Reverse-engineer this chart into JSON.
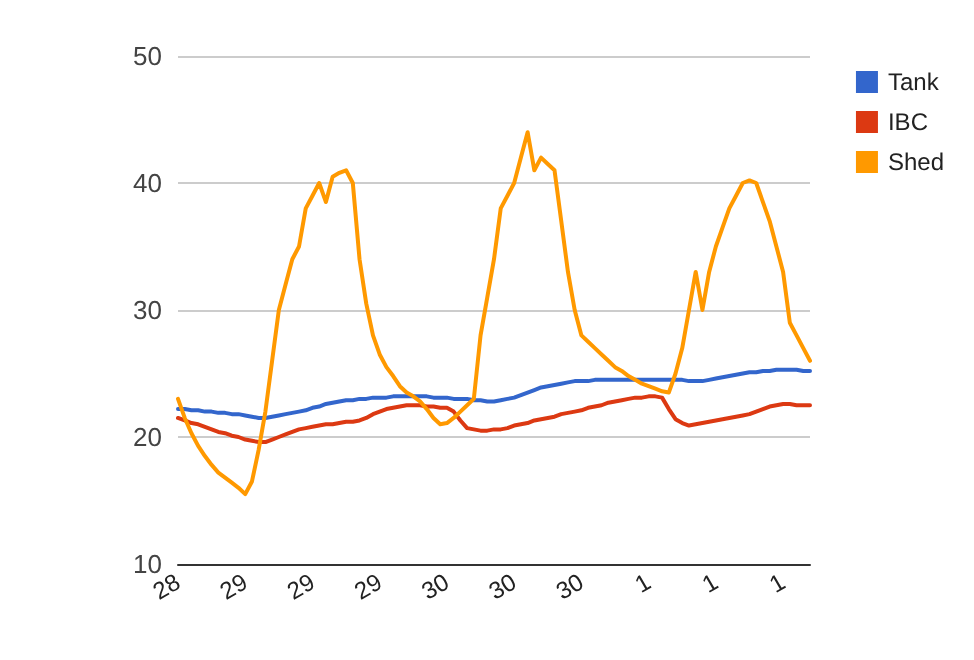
{
  "chart_data": {
    "type": "line",
    "categories": [
      "28",
      null,
      null,
      null,
      null,
      null,
      null,
      null,
      null,
      null,
      "29",
      null,
      null,
      null,
      null,
      null,
      null,
      null,
      null,
      null,
      "29",
      null,
      null,
      null,
      null,
      null,
      null,
      null,
      null,
      null,
      "29",
      null,
      null,
      null,
      null,
      null,
      null,
      null,
      null,
      null,
      "30",
      null,
      null,
      null,
      null,
      null,
      null,
      null,
      null,
      null,
      "30",
      null,
      null,
      null,
      null,
      null,
      null,
      null,
      null,
      null,
      "30",
      null,
      null,
      null,
      null,
      null,
      null,
      null,
      null,
      null,
      "1",
      null,
      null,
      null,
      null,
      null,
      null,
      null,
      null,
      null,
      "1",
      null,
      null,
      null,
      null,
      null,
      null,
      null,
      null,
      null,
      "1",
      null,
      null,
      null,
      null
    ],
    "ylim": [
      10,
      50
    ],
    "yticks": [
      10,
      20,
      30,
      40,
      50
    ],
    "grid": "y",
    "legend": "top right",
    "marker": "none",
    "line_style": "solid",
    "series": [
      {
        "name": "Tank",
        "color": "#3366cc",
        "values": [
          22.2,
          22.2,
          22.1,
          22.1,
          22,
          22,
          21.9,
          21.9,
          21.8,
          21.8,
          21.7,
          21.6,
          21.5,
          21.5,
          21.6,
          21.7,
          21.8,
          21.9,
          22,
          22.1,
          22.3,
          22.4,
          22.6,
          22.7,
          22.8,
          22.9,
          22.9,
          23,
          23,
          23.1,
          23.1,
          23.1,
          23.2,
          23.2,
          23.2,
          23.2,
          23.2,
          23.2,
          23.1,
          23.1,
          23.1,
          23,
          23,
          23,
          22.9,
          22.9,
          22.8,
          22.8,
          22.9,
          23,
          23.1,
          23.3,
          23.5,
          23.7,
          23.9,
          24,
          24.1,
          24.2,
          24.3,
          24.4,
          24.4,
          24.4,
          24.5,
          24.5,
          24.5,
          24.5,
          24.5,
          24.5,
          24.5,
          24.5,
          24.5,
          24.5,
          24.5,
          24.5,
          24.5,
          24.5,
          24.4,
          24.4,
          24.4,
          24.5,
          24.6,
          24.7,
          24.8,
          24.9,
          25,
          25.1,
          25.1,
          25.2,
          25.2,
          25.3,
          25.3,
          25.3,
          25.3,
          25.2,
          25.2
        ]
      },
      {
        "name": "IBC",
        "color": "#dc3912",
        "values": [
          21.5,
          21.3,
          21.1,
          21,
          20.8,
          20.6,
          20.4,
          20.3,
          20.1,
          20,
          19.8,
          19.7,
          19.6,
          19.6,
          19.8,
          20,
          20.2,
          20.4,
          20.6,
          20.7,
          20.8,
          20.9,
          21,
          21,
          21.1,
          21.2,
          21.2,
          21.3,
          21.5,
          21.8,
          22,
          22.2,
          22.3,
          22.4,
          22.5,
          22.5,
          22.5,
          22.4,
          22.4,
          22.3,
          22.3,
          22,
          21.3,
          20.7,
          20.6,
          20.5,
          20.5,
          20.6,
          20.6,
          20.7,
          20.9,
          21,
          21.1,
          21.3,
          21.4,
          21.5,
          21.6,
          21.8,
          21.9,
          22,
          22.1,
          22.3,
          22.4,
          22.5,
          22.7,
          22.8,
          22.9,
          23,
          23.1,
          23.1,
          23.2,
          23.2,
          23.1,
          22.2,
          21.4,
          21.1,
          20.9,
          21,
          21.1,
          21.2,
          21.3,
          21.4,
          21.5,
          21.6,
          21.7,
          21.8,
          22,
          22.2,
          22.4,
          22.5,
          22.6,
          22.6,
          22.5,
          22.5,
          22.5
        ]
      },
      {
        "name": "Shed",
        "color": "#ff9900",
        "values": [
          23,
          21.5,
          20.3,
          19.3,
          18.5,
          17.8,
          17.2,
          16.8,
          16.4,
          16,
          15.5,
          16.5,
          19,
          22,
          26,
          30,
          32,
          34,
          35,
          38,
          39,
          40,
          38.5,
          40.5,
          40.8,
          41,
          40,
          34,
          30.5,
          28,
          26.5,
          25.5,
          24.8,
          24,
          23.5,
          23.2,
          22.8,
          22.2,
          21.5,
          21,
          21.1,
          21.5,
          22,
          22.5,
          23,
          28,
          31,
          34,
          38,
          39,
          40,
          42,
          44,
          41,
          42,
          41.5,
          41,
          37,
          33,
          30,
          28,
          27.5,
          27,
          26.5,
          26,
          25.5,
          25.2,
          24.8,
          24.5,
          24.2,
          24,
          23.8,
          23.6,
          23.5,
          25,
          27,
          30,
          33,
          30,
          33,
          35,
          36.5,
          38,
          39,
          40,
          40.2,
          40,
          38.5,
          37,
          35,
          33,
          29,
          28,
          27,
          26
        ]
      }
    ]
  }
}
